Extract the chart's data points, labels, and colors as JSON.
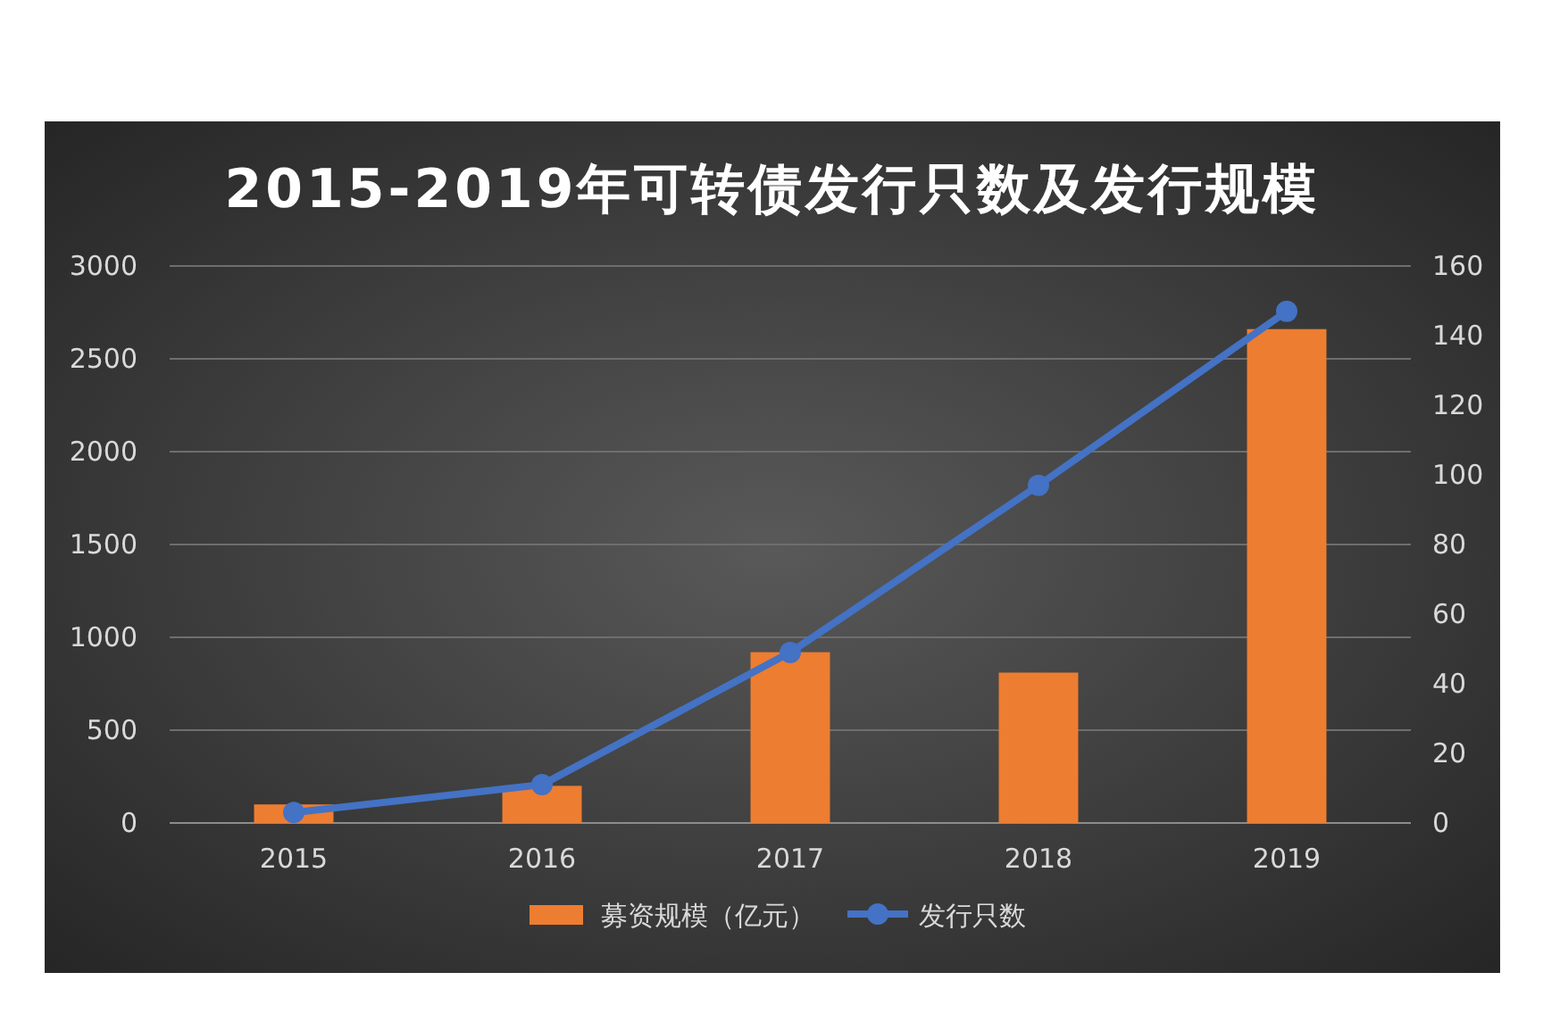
{
  "chart_data": {
    "type": "bar",
    "title": "2015-2019年可转债发行只数及发行规模",
    "categories": [
      "2015",
      "2016",
      "2017",
      "2018",
      "2019"
    ],
    "series": [
      {
        "name": "募资规模（亿元）",
        "color": "#ed7d31",
        "values": [
          100,
          200,
          920,
          810,
          2660
        ]
      },
      {
        "name": "发行只数",
        "type": "line",
        "axis": "y2",
        "color": "#4472c4",
        "values": [
          3,
          11,
          49,
          97,
          147
        ]
      }
    ],
    "ylim": [
      0,
      3000
    ],
    "yticks": [
      0,
      500,
      1000,
      1500,
      2000,
      2500,
      3000
    ],
    "y2lim": [
      0,
      160
    ],
    "y2ticks": [
      0,
      20,
      40,
      60,
      80,
      100,
      120,
      140,
      160
    ],
    "grid": "y",
    "legend": "bottom",
    "marker": "circle"
  }
}
